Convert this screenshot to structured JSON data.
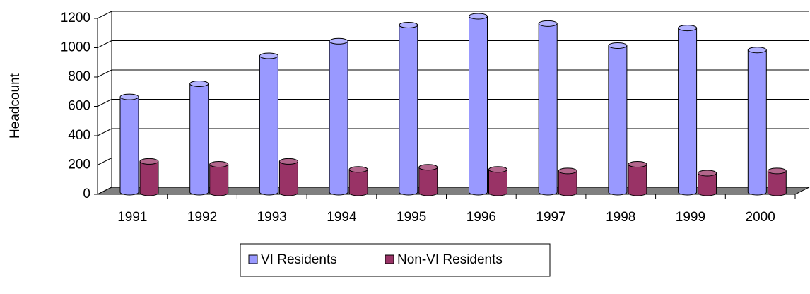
{
  "chart_data": {
    "type": "bar3d",
    "y_label": "Headcount",
    "categories": [
      "1991",
      "1992",
      "1993",
      "1994",
      "1995",
      "1996",
      "1997",
      "1998",
      "1999",
      "2000"
    ],
    "series": [
      {
        "name": "VI Residents",
        "color": "#9999ff",
        "values": [
          650,
          740,
          930,
          1030,
          1140,
          1200,
          1150,
          1000,
          1120,
          970
        ]
      },
      {
        "name": "Non-VI Residents",
        "color": "#993366",
        "values": [
          215,
          195,
          215,
          160,
          175,
          160,
          150,
          195,
          135,
          150
        ]
      }
    ],
    "ylim": [
      0,
      1200
    ],
    "yticks": [
      0,
      200,
      400,
      600,
      800,
      1000,
      1200
    ],
    "grid": true,
    "legend": "bottom"
  }
}
